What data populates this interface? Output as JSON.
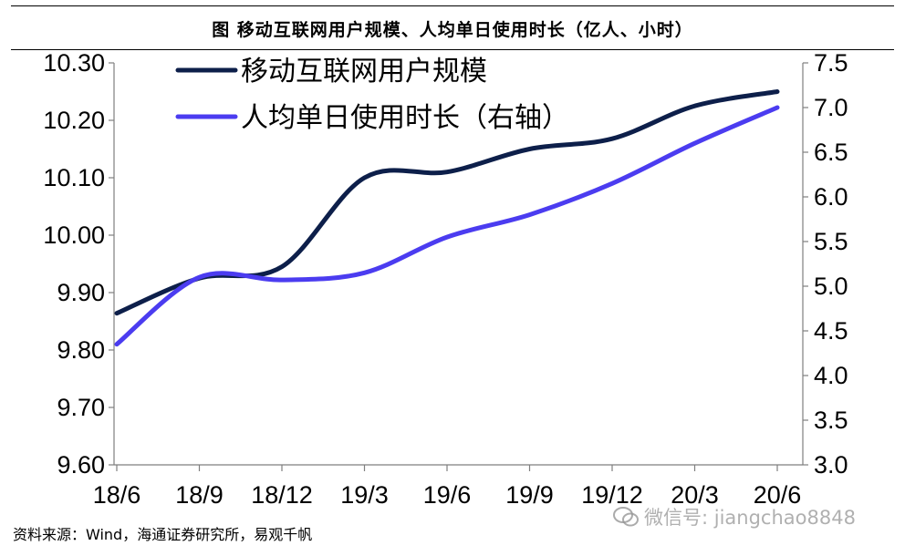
{
  "header": {
    "title": "图 移动互联网用户规模、人均单日使用时长（亿人、小时）"
  },
  "footer": {
    "source": "资料来源：Wind，海通证券研究所，易观千帆"
  },
  "watermark": {
    "text": "微信号: jiangchao8848"
  },
  "colors": {
    "series_users": "#0d1f4a",
    "series_duration": "#4b3cf0",
    "axis": "#7f7f7f"
  },
  "chart_data": {
    "type": "line",
    "categories": [
      "18/6",
      "18/9",
      "18/12",
      "19/3",
      "19/6",
      "19/9",
      "19/12",
      "20/3",
      "20/6"
    ],
    "y_left": {
      "ylim": [
        9.6,
        10.3
      ],
      "ticks": [
        "9.60",
        "9.70",
        "9.80",
        "9.90",
        "10.00",
        "10.10",
        "10.20",
        "10.30"
      ]
    },
    "y_right": {
      "ylim": [
        3.0,
        7.5
      ],
      "ticks": [
        "3.0",
        "3.5",
        "4.0",
        "4.5",
        "5.0",
        "5.5",
        "6.0",
        "6.5",
        "7.0",
        "7.5"
      ]
    },
    "series": [
      {
        "name": "移动互联网用户规模",
        "axis": "left",
        "values": [
          9.864,
          9.925,
          9.945,
          10.1,
          10.11,
          10.15,
          10.168,
          10.225,
          10.25
        ]
      },
      {
        "name": "人均单日使用时长（右轴）",
        "axis": "right",
        "values": [
          4.35,
          5.1,
          5.07,
          5.15,
          5.55,
          5.8,
          6.15,
          6.6,
          7.0
        ]
      }
    ],
    "legend_position": "top-left",
    "grid": false
  }
}
